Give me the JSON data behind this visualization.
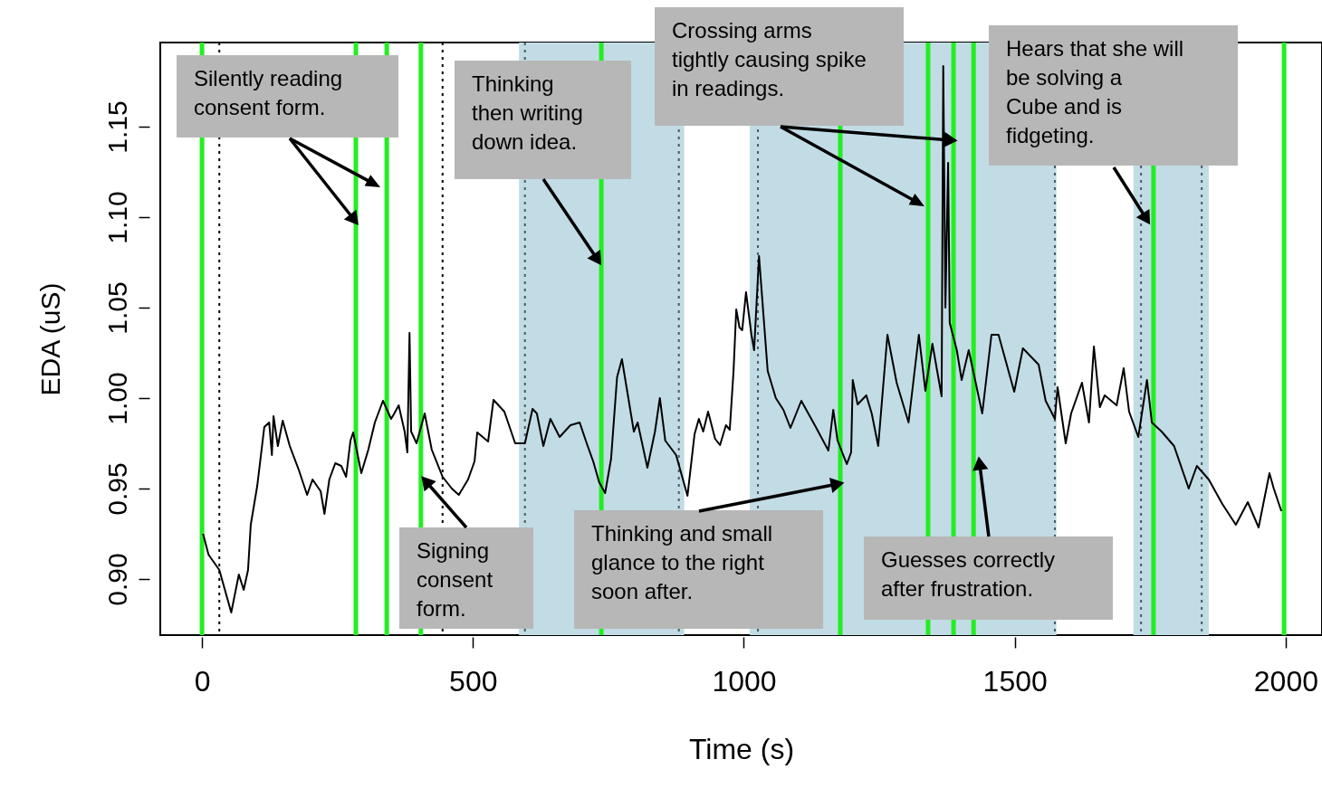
{
  "chart_data": {
    "type": "line",
    "xlabel": "Time (s)",
    "ylabel": "EDA (uS)",
    "xlim": [
      -77,
      2067
    ],
    "ylim": [
      0.869,
      1.1965
    ],
    "xticks": [
      0,
      500,
      1000,
      1500,
      2000
    ],
    "yticks": [
      {
        "value": 0.9,
        "label": "0.90"
      },
      {
        "value": 0.95,
        "label": "0.95"
      },
      {
        "value": 1.0,
        "label": "1.00"
      },
      {
        "value": 1.05,
        "label": "1.05"
      },
      {
        "value": 1.1,
        "label": "1.10"
      },
      {
        "value": 1.15,
        "label": "1.15"
      }
    ],
    "grid": false,
    "marker": "none",
    "line_style": "solid",
    "x": [
      2,
      12,
      32,
      54,
      68,
      77,
      85,
      90,
      102,
      115,
      124,
      129,
      132,
      140,
      149,
      162,
      179,
      194,
      204,
      219,
      226,
      235,
      246,
      257,
      266,
      274,
      279,
      294,
      307,
      319,
      334,
      349,
      354,
      363,
      374,
      379,
      383,
      386,
      396,
      411,
      424,
      444,
      461,
      474,
      491,
      503,
      508,
      528,
      538,
      558,
      578,
      596,
      610,
      618,
      630,
      643,
      660,
      680,
      697,
      710,
      722,
      733,
      744,
      755,
      766,
      775,
      786,
      797,
      804,
      822,
      836,
      845,
      855,
      875,
      896,
      909,
      917,
      925,
      934,
      947,
      956,
      967,
      974,
      981,
      986,
      992,
      997,
      1004,
      1014,
      1019,
      1028,
      1044,
      1059,
      1073,
      1086,
      1106,
      1131,
      1156,
      1165,
      1173,
      1190,
      1198,
      1201,
      1210,
      1226,
      1236,
      1248,
      1265,
      1282,
      1304,
      1323,
      1335,
      1348,
      1365,
      1368,
      1372,
      1377,
      1380,
      1393,
      1402,
      1415,
      1440,
      1457,
      1470,
      1499,
      1515,
      1544,
      1557,
      1574,
      1579,
      1594,
      1604,
      1624,
      1637,
      1646,
      1657,
      1666,
      1688,
      1701,
      1711,
      1728,
      1744,
      1753,
      1771,
      1794,
      1821,
      1836,
      1858,
      1883,
      1908,
      1930,
      1950,
      1970,
      1978,
      1992
    ],
    "series": [
      {
        "color": "#000000",
        "values": [
          0.925,
          0.9135,
          0.905,
          0.8815,
          0.9025,
          0.894,
          0.905,
          0.93,
          0.9515,
          0.984,
          0.9865,
          0.9685,
          0.99,
          0.9735,
          0.9875,
          0.9735,
          0.96,
          0.9465,
          0.955,
          0.9485,
          0.936,
          0.955,
          0.964,
          0.9625,
          0.9565,
          0.9765,
          0.981,
          0.9585,
          0.9715,
          0.9865,
          0.9985,
          0.9885,
          0.991,
          0.996,
          0.9815,
          0.97,
          1.036,
          0.9815,
          0.975,
          0.9915,
          0.9715,
          0.9565,
          0.95,
          0.9465,
          0.955,
          0.965,
          0.981,
          0.976,
          0.999,
          0.9925,
          0.975,
          0.975,
          0.994,
          0.9915,
          0.9735,
          0.9885,
          0.9785,
          0.985,
          0.9865,
          0.975,
          0.965,
          0.9535,
          0.9475,
          0.9665,
          1.0115,
          1.0215,
          1.0015,
          0.9815,
          0.9865,
          0.9615,
          0.9815,
          1.0,
          0.9765,
          0.9685,
          0.946,
          0.98,
          0.9885,
          0.9815,
          0.9925,
          0.9775,
          0.974,
          0.985,
          0.9825,
          1.015,
          1.049,
          1.039,
          1.0375,
          1.0585,
          1.035,
          1.0265,
          1.0785,
          1.015,
          1.0,
          0.9935,
          0.9835,
          0.9985,
          0.985,
          0.971,
          0.9935,
          0.9765,
          0.9635,
          0.97,
          1.01,
          0.9965,
          1.0015,
          0.9915,
          0.9735,
          1.035,
          1.0085,
          0.9865,
          1.035,
          1.004,
          1.03,
          1.001,
          1.1835,
          1.05,
          1.13,
          1.0415,
          1.0265,
          1.01,
          1.0265,
          0.9915,
          1.035,
          1.035,
          1.0035,
          1.0275,
          1.0185,
          0.9985,
          0.9885,
          1.006,
          0.975,
          0.9915,
          1.0085,
          0.9865,
          1.0285,
          0.995,
          1.0015,
          0.996,
          1.0165,
          0.9925,
          0.9785,
          1.01,
          0.9865,
          0.9815,
          0.9735,
          0.95,
          0.9625,
          0.955,
          0.9415,
          0.93,
          0.9425,
          0.9285,
          0.9585,
          0.95,
          0.9375
        ]
      }
    ],
    "bands": [
      {
        "axis": "x",
        "from": 585,
        "to": 890,
        "color": "#c2dce5"
      },
      {
        "axis": "x",
        "from": 1011,
        "to": 1577,
        "color": "#c2dce5"
      },
      {
        "axis": "x",
        "from": 1719,
        "to": 1858,
        "color": "#c2dce5"
      }
    ],
    "ref_lines": [
      {
        "axis": "x",
        "value": 0,
        "color": "#22ee22",
        "line_style": "solid"
      },
      {
        "axis": "x",
        "value": 284,
        "color": "#22ee22",
        "line_style": "solid"
      },
      {
        "axis": "x",
        "value": 341,
        "color": "#22ee22",
        "line_style": "solid"
      },
      {
        "axis": "x",
        "value": 404,
        "color": "#22ee22",
        "line_style": "solid"
      },
      {
        "axis": "x",
        "value": 737,
        "color": "#22ee22",
        "line_style": "solid"
      },
      {
        "axis": "x",
        "value": 1178,
        "color": "#22ee22",
        "line_style": "solid"
      },
      {
        "axis": "x",
        "value": 1340,
        "color": "#22ee22",
        "line_style": "solid"
      },
      {
        "axis": "x",
        "value": 1387,
        "color": "#22ee22",
        "line_style": "solid"
      },
      {
        "axis": "x",
        "value": 1424,
        "color": "#22ee22",
        "line_style": "solid"
      },
      {
        "axis": "x",
        "value": 1756,
        "color": "#22ee22",
        "line_style": "solid"
      },
      {
        "axis": "x",
        "value": 1997,
        "color": "#22ee22",
        "line_style": "solid"
      },
      {
        "axis": "x",
        "value": 32,
        "color": "#000000",
        "line_style": "dotted"
      },
      {
        "axis": "x",
        "value": 444,
        "color": "#000000",
        "line_style": "dotted"
      },
      {
        "axis": "x",
        "value": 596,
        "color": "#4a5a62",
        "line_style": "dotted"
      },
      {
        "axis": "x",
        "value": 880,
        "color": "#4a5a62",
        "line_style": "dotted"
      },
      {
        "axis": "x",
        "value": 1026,
        "color": "#4a5a62",
        "line_style": "dotted"
      },
      {
        "axis": "x",
        "value": 1574,
        "color": "#4a5a62",
        "line_style": "dotted"
      },
      {
        "axis": "x",
        "value": 1733,
        "color": "#4a5a62",
        "line_style": "dotted"
      },
      {
        "axis": "x",
        "value": 1845,
        "color": "#4a5a62",
        "line_style": "dotted"
      }
    ],
    "annotations": [
      {
        "text": "Silently reading consent form.",
        "x": 281,
        "y": 1.0985
      },
      {
        "text": "Thinking then writing down idea.",
        "x": 730,
        "y": 1.0765
      },
      {
        "text": "Crossing arms tightly causing spike in readings.",
        "x": 1382,
        "y": 1.1425
      },
      {
        "text": "Hears that she will be solving a Cube and is fidgeting.",
        "x": 1743,
        "y": 1.099
      },
      {
        "text": "Signing consent form.",
        "x": 413,
        "y": 0.954
      },
      {
        "text": "Thinking and small glance to the right soon after.",
        "x": 1173,
        "y": 0.9525
      },
      {
        "text": "Guesses correctly after frustration.",
        "x": 1435,
        "y": 0.964
      }
    ]
  }
}
